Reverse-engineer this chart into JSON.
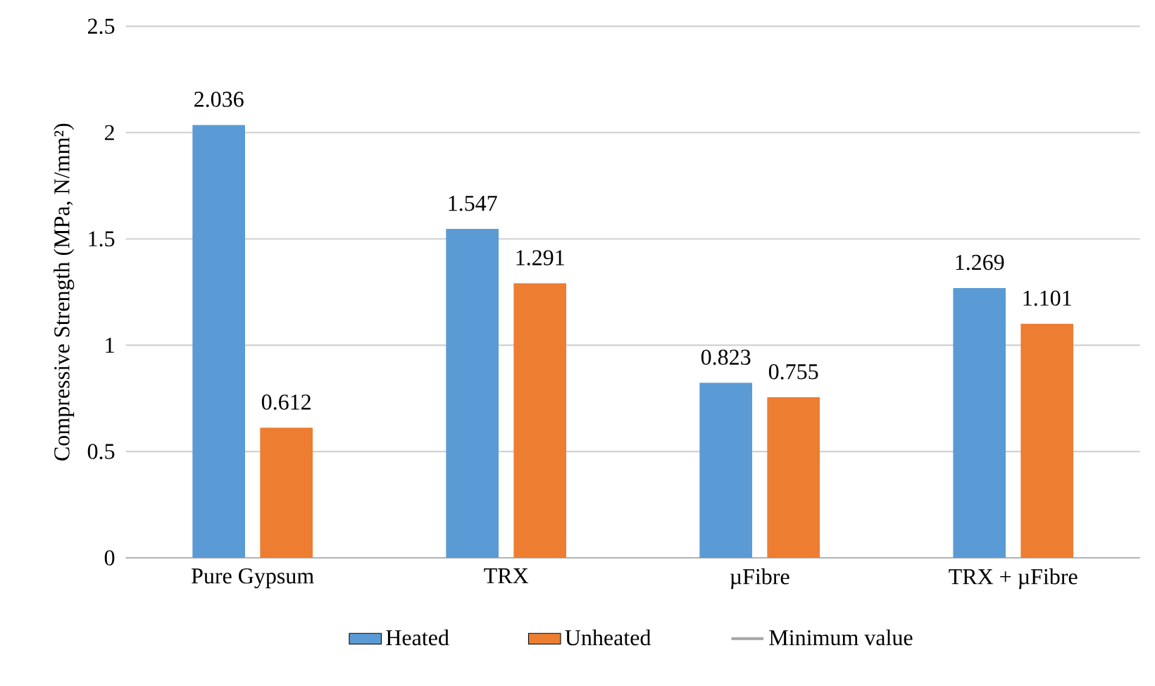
{
  "chart_data": {
    "type": "bar",
    "ylabel": "Compressive Strength (MPa, N/mm²)",
    "categories": [
      "Pure Gypsum",
      "TRX",
      "µFibre",
      "TRX + µFibre"
    ],
    "series": [
      {
        "name": "Heated",
        "color": "#5b9bd5",
        "values": [
          2.036,
          1.547,
          0.823,
          1.269
        ]
      },
      {
        "name": "Unheated",
        "color": "#ed7d31",
        "values": [
          0.612,
          1.291,
          0.755,
          1.101
        ]
      },
      {
        "name": "Minimum value",
        "type": "line",
        "color": "#a5a5a5",
        "values": [
          null,
          null,
          null,
          null
        ]
      }
    ],
    "ylim": [
      0,
      2.5
    ],
    "yticks": [
      0,
      0.5,
      1,
      1.5,
      2,
      2.5
    ],
    "grid": "y",
    "legend": "bottom",
    "data_labels": true
  }
}
